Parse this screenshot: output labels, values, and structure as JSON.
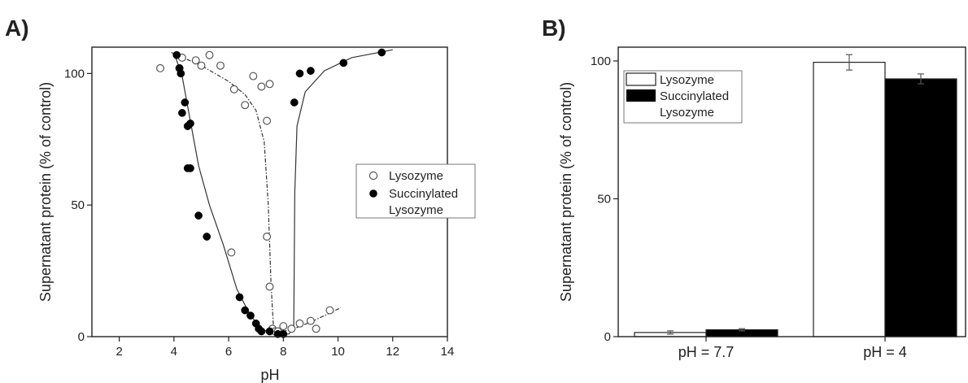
{
  "panels": [
    "A)",
    "B)"
  ],
  "chart_data": [
    {
      "type": "scatter",
      "xlabel": "pH",
      "ylabel": "Supernatant protein (% of control)",
      "xlim": [
        1,
        14
      ],
      "ylim": [
        0,
        110
      ],
      "xticks": [
        "2",
        "4",
        "6",
        "8",
        "10",
        "12",
        "14"
      ],
      "yticks": [
        "0",
        "50",
        "100"
      ],
      "legend_position": "right",
      "legend": [
        "Lysozyme",
        "Succinylated",
        "Lysozyme"
      ],
      "series": [
        {
          "name": "Lysozyme",
          "marker": "open-circle",
          "points": [
            [
              3.5,
              102
            ],
            [
              4.2,
              102
            ],
            [
              4.3,
              106
            ],
            [
              4.8,
              105
            ],
            [
              5.0,
              103
            ],
            [
              5.3,
              107
            ],
            [
              5.7,
              103
            ],
            [
              6.1,
              32
            ],
            [
              6.2,
              94
            ],
            [
              6.6,
              88
            ],
            [
              6.9,
              99
            ],
            [
              7.2,
              95
            ],
            [
              7.5,
              96
            ],
            [
              7.4,
              82
            ],
            [
              7.4,
              38
            ],
            [
              7.5,
              19
            ],
            [
              7.6,
              3
            ],
            [
              7.7,
              2
            ],
            [
              7.8,
              2
            ],
            [
              8.0,
              4
            ],
            [
              8.3,
              3
            ],
            [
              8.6,
              5
            ],
            [
              9.0,
              6
            ],
            [
              9.2,
              3
            ],
            [
              9.7,
              10
            ]
          ],
          "fit_curve": [
            [
              3.9,
              108
            ],
            [
              5.0,
              103
            ],
            [
              6.0,
              97
            ],
            [
              6.6,
              92
            ],
            [
              7.0,
              86
            ],
            [
              7.3,
              74
            ],
            [
              7.45,
              50
            ],
            [
              7.55,
              20
            ],
            [
              7.65,
              2
            ],
            [
              8.0,
              2
            ],
            [
              8.5,
              3.5
            ],
            [
              9.0,
              5.5
            ],
            [
              9.6,
              8.5
            ],
            [
              10.1,
              11
            ]
          ]
        },
        {
          "name": "Succinylated Lysozyme",
          "marker": "filled-circle",
          "points": [
            [
              4.1,
              107
            ],
            [
              4.2,
              102
            ],
            [
              4.25,
              100
            ],
            [
              4.3,
              85
            ],
            [
              4.4,
              89
            ],
            [
              4.5,
              80
            ],
            [
              4.6,
              81
            ],
            [
              4.5,
              64
            ],
            [
              4.6,
              64
            ],
            [
              4.9,
              46
            ],
            [
              5.2,
              38
            ],
            [
              6.4,
              15
            ],
            [
              6.6,
              10
            ],
            [
              6.8,
              8
            ],
            [
              7.0,
              5
            ],
            [
              7.1,
              3
            ],
            [
              7.2,
              2
            ],
            [
              7.5,
              2
            ],
            [
              7.8,
              1
            ],
            [
              8.0,
              1
            ],
            [
              8.4,
              89
            ],
            [
              8.6,
              100
            ],
            [
              9.0,
              101
            ],
            [
              10.2,
              104
            ],
            [
              11.6,
              108
            ]
          ],
          "fit_curve": [
            [
              4.0,
              108
            ],
            [
              4.3,
              99
            ],
            [
              4.6,
              82
            ],
            [
              4.9,
              65
            ],
            [
              5.3,
              50
            ],
            [
              5.8,
              35
            ],
            [
              6.3,
              18
            ],
            [
              6.8,
              8
            ],
            [
              7.2,
              3
            ],
            [
              7.6,
              1
            ],
            [
              8.2,
              1
            ],
            [
              8.38,
              3
            ],
            [
              8.42,
              55
            ],
            [
              8.5,
              80
            ],
            [
              8.8,
              93
            ],
            [
              9.5,
              101
            ],
            [
              10.5,
              106
            ],
            [
              12.0,
              109
            ]
          ]
        }
      ]
    },
    {
      "type": "bar",
      "ylabel": "Supernatant protein (% of control)",
      "ylim": [
        0,
        105
      ],
      "yticks": [
        "0",
        "50",
        "100"
      ],
      "categories": [
        "pH = 7.7",
        "pH = 4"
      ],
      "legend_position": "top-left",
      "legend": [
        "Lysozyme",
        "Succinylated",
        "Lysozyme"
      ],
      "series": [
        {
          "name": "Lysozyme",
          "fill": "#ffffff",
          "values": [
            1.5,
            99.5
          ],
          "errors": [
            0.6,
            2.8
          ]
        },
        {
          "name": "Succinylated Lysozyme",
          "fill": "#000000",
          "values": [
            2.5,
            93.5
          ],
          "errors": [
            0.4,
            1.8
          ]
        }
      ]
    }
  ]
}
